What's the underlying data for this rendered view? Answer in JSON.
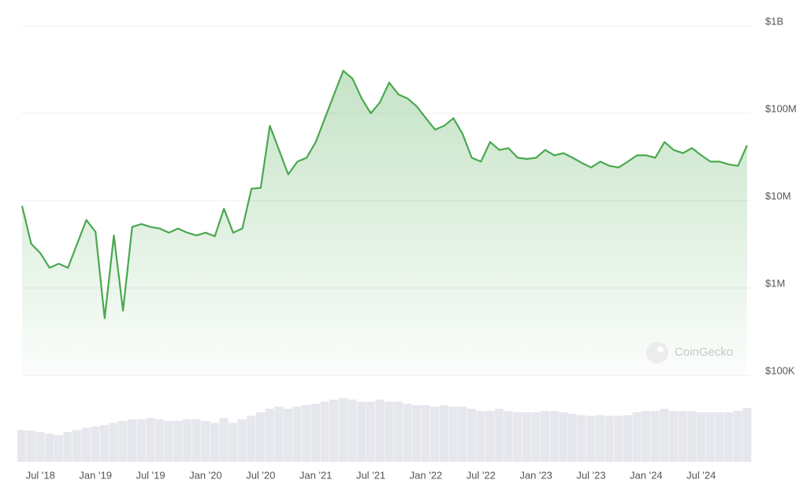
{
  "chart_data": [
    {
      "type": "line",
      "log": true,
      "color": "#4aa84f",
      "grid": true,
      "watermark": "CoinGecko",
      "x": [
        "2018-05",
        "2018-06",
        "2018-07",
        "2018-08",
        "2018-09",
        "2018-10",
        "2018-11",
        "2018-12",
        "2019-01",
        "2019-02",
        "2019-03",
        "2019-04",
        "2019-05",
        "2019-06",
        "2019-07",
        "2019-08",
        "2019-09",
        "2019-10",
        "2019-11",
        "2019-12",
        "2020-01",
        "2020-02",
        "2020-03",
        "2020-04",
        "2020-05",
        "2020-06",
        "2020-07",
        "2020-08",
        "2020-09",
        "2020-10",
        "2020-11",
        "2020-12",
        "2021-01",
        "2021-02",
        "2021-03",
        "2021-04",
        "2021-05",
        "2021-06",
        "2021-07",
        "2021-08",
        "2021-09",
        "2021-10",
        "2021-11",
        "2021-12",
        "2022-01",
        "2022-02",
        "2022-03",
        "2022-04",
        "2022-05",
        "2022-06",
        "2022-07",
        "2022-08",
        "2022-09",
        "2022-10",
        "2022-11",
        "2022-12",
        "2023-01",
        "2023-02",
        "2023-03",
        "2023-04",
        "2023-05",
        "2023-06",
        "2023-07",
        "2023-08",
        "2023-09",
        "2023-10",
        "2023-11",
        "2023-12",
        "2024-01",
        "2024-02",
        "2024-03",
        "2024-04",
        "2024-05",
        "2024-06",
        "2024-07",
        "2024-08",
        "2024-09",
        "2024-10",
        "2024-11",
        "2024-12"
      ],
      "values": [
        8700000,
        3200000,
        2500000,
        1700000,
        1900000,
        1700000,
        3200000,
        6000000,
        4400000,
        450000,
        4000000,
        550000,
        5000000,
        5400000,
        5000000,
        4800000,
        4300000,
        4800000,
        4300000,
        4000000,
        4300000,
        3900000,
        8100000,
        4300000,
        4800000,
        13700000,
        14000000,
        72000000,
        38000000,
        20000000,
        28000000,
        31000000,
        47000000,
        88000000,
        165000000,
        307000000,
        250000000,
        148000000,
        100000000,
        134000000,
        225000000,
        165000000,
        148000000,
        120000000,
        88000000,
        65000000,
        72000000,
        88000000,
        58000000,
        31000000,
        28000000,
        47000000,
        38000000,
        40000000,
        31000000,
        30000000,
        31000000,
        38000000,
        33000000,
        35000000,
        31000000,
        27000000,
        24000000,
        28000000,
        25000000,
        24000000,
        28000000,
        33000000,
        33000000,
        31000000,
        47000000,
        38000000,
        35000000,
        40000000,
        33000000,
        28000000,
        28000000,
        26000000,
        25000000,
        43000000
      ],
      "xlim": [
        "2018-05",
        "2024-12"
      ],
      "xticks": [
        {
          "value": "2018-07",
          "label": "Jul '18"
        },
        {
          "value": "2019-01",
          "label": "Jan '19"
        },
        {
          "value": "2019-07",
          "label": "Jul '19"
        },
        {
          "value": "2020-01",
          "label": "Jan '20"
        },
        {
          "value": "2020-07",
          "label": "Jul '20"
        },
        {
          "value": "2021-01",
          "label": "Jan '21"
        },
        {
          "value": "2021-07",
          "label": "Jul '21"
        },
        {
          "value": "2022-01",
          "label": "Jan '22"
        },
        {
          "value": "2022-07",
          "label": "Jul '22"
        },
        {
          "value": "2023-01",
          "label": "Jan '23"
        },
        {
          "value": "2023-07",
          "label": "Jul '23"
        },
        {
          "value": "2024-01",
          "label": "Jan '24"
        },
        {
          "value": "2024-07",
          "label": "Jul '24"
        }
      ],
      "ylim": [
        100000,
        1000000000
      ],
      "yticks": [
        {
          "value": 1000000000,
          "label": "$1B"
        },
        {
          "value": 100000000,
          "label": "$100M"
        },
        {
          "value": 10000000,
          "label": "$10M"
        },
        {
          "value": 1000000,
          "label": "$1M"
        },
        {
          "value": 100000,
          "label": "$100K"
        }
      ]
    },
    {
      "type": "bar",
      "color": "#e6e7ed",
      "ylim": [
        0,
        100
      ],
      "values": [
        45,
        44,
        42,
        40,
        38,
        42,
        45,
        48,
        50,
        52,
        55,
        58,
        60,
        60,
        62,
        60,
        58,
        58,
        60,
        60,
        58,
        55,
        62,
        55,
        60,
        65,
        70,
        75,
        78,
        75,
        78,
        80,
        82,
        85,
        88,
        90,
        88,
        85,
        85,
        88,
        85,
        85,
        82,
        80,
        80,
        78,
        80,
        78,
        78,
        75,
        72,
        72,
        75,
        72,
        70,
        70,
        70,
        72,
        72,
        70,
        68,
        66,
        65,
        66,
        65,
        65,
        66,
        70,
        72,
        72,
        75,
        72,
        72,
        72,
        70,
        70,
        70,
        70,
        72,
        76
      ]
    }
  ]
}
